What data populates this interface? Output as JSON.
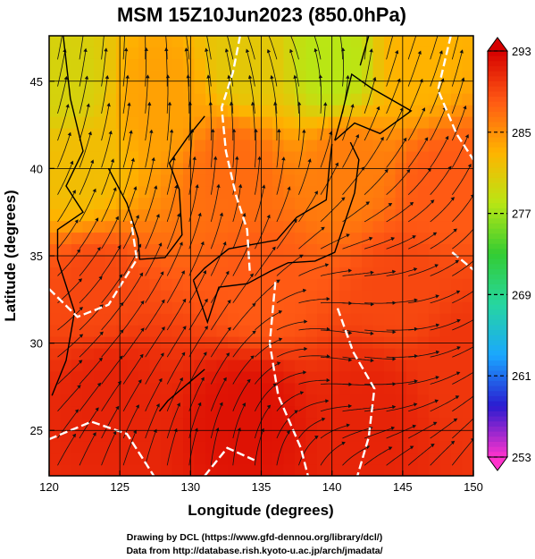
{
  "chart_data": {
    "type": "heatmap",
    "title": "MSM 15Z10Jun2023 (850.0hPa)",
    "xlabel": "Longitude (degrees)",
    "ylabel": "Latitude  (degrees)",
    "xlim": [
      120,
      150
    ],
    "ylim": [
      22.4,
      47.6
    ],
    "x_ticks": [
      "120",
      "125",
      "130",
      "135",
      "140",
      "145",
      "150"
    ],
    "x_tick_values": [
      120,
      125,
      130,
      135,
      140,
      145,
      150
    ],
    "y_ticks": [
      "25",
      "30",
      "35",
      "40",
      "45"
    ],
    "y_tick_values": [
      25,
      30,
      35,
      40,
      45
    ],
    "grid": true,
    "colorbar": {
      "min": 253,
      "max": 293,
      "ticks": [
        "293",
        "285",
        "277",
        "269",
        "261",
        "253"
      ],
      "tick_values": [
        293,
        285,
        277,
        269,
        261,
        253
      ],
      "colors": [
        "#ff33cc",
        "#2a1bd0",
        "#1aa7ff",
        "#26d6a0",
        "#33cc33",
        "#b9e614",
        "#ffb300",
        "#ff5a14",
        "#d60000"
      ]
    },
    "temperature_samples": [
      {
        "lon": 121,
        "lat": 45,
        "value": 280
      },
      {
        "lon": 128,
        "lat": 44,
        "value": 284
      },
      {
        "lon": 134,
        "lat": 46,
        "value": 281
      },
      {
        "lon": 140,
        "lat": 46,
        "value": 278
      },
      {
        "lon": 146,
        "lat": 46,
        "value": 283
      },
      {
        "lon": 122,
        "lat": 40,
        "value": 282
      },
      {
        "lon": 133,
        "lat": 40,
        "value": 287
      },
      {
        "lon": 141,
        "lat": 40,
        "value": 286
      },
      {
        "lon": 148,
        "lat": 39,
        "value": 288
      },
      {
        "lon": 123,
        "lat": 33,
        "value": 289
      },
      {
        "lon": 135,
        "lat": 33,
        "value": 288
      },
      {
        "lon": 145,
        "lat": 33,
        "value": 289
      },
      {
        "lon": 124,
        "lat": 27,
        "value": 291
      },
      {
        "lon": 134,
        "lat": 26,
        "value": 292
      },
      {
        "lon": 143,
        "lat": 26,
        "value": 291
      },
      {
        "lon": 149,
        "lat": 29,
        "value": 290
      }
    ],
    "credits": [
      "Drawing by DCL (https://www.gfd-dennou.org/library/dcl/)",
      "Data from http://database.rish.kyoto-u.ac.jp/arch/jmadata/"
    ]
  }
}
